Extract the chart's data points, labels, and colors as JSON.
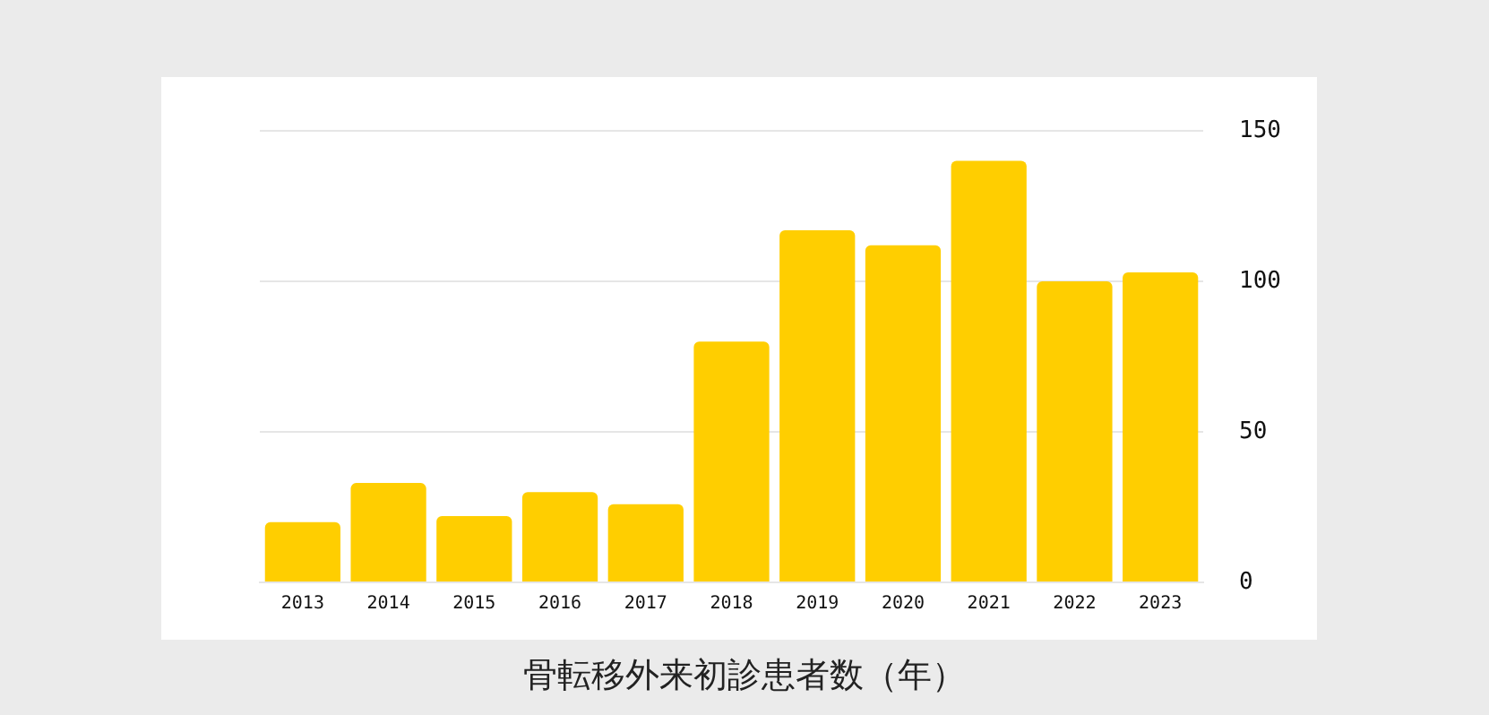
{
  "chart_data": {
    "type": "bar",
    "title": "骨転移外来初診患者数（年）",
    "categories": [
      "2013",
      "2014",
      "2015",
      "2016",
      "2017",
      "2018",
      "2019",
      "2020",
      "2021",
      "2022",
      "2023"
    ],
    "values": [
      20,
      33,
      22,
      30,
      26,
      80,
      117,
      112,
      140,
      100,
      103
    ],
    "color": "#ffce00",
    "ylim": [
      0,
      150
    ],
    "yticks": [
      0,
      50,
      100,
      150
    ],
    "grid": "y"
  }
}
